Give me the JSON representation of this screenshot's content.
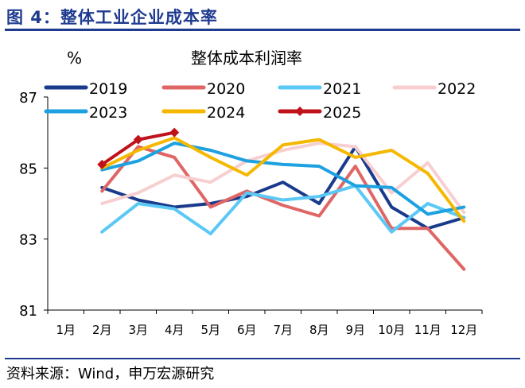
{
  "figure_title": "图 4：整体工业企业成本率",
  "source": "资料来源：Wind，申万宏源研究",
  "chart_data": {
    "type": "line",
    "title": "整体成本利润率",
    "unit_label": "%",
    "categories": [
      "1月",
      "2月",
      "3月",
      "4月",
      "5月",
      "6月",
      "7月",
      "8月",
      "9月",
      "10月",
      "11月",
      "12月"
    ],
    "ylim": [
      81,
      87
    ],
    "yticks": [
      81,
      83,
      85,
      87
    ],
    "grid": false,
    "legend_position": "top",
    "series": [
      {
        "name": "2019",
        "color": "#1a3a8c",
        "marker": false,
        "values": [
          null,
          84.45,
          84.1,
          83.9,
          84.0,
          84.2,
          84.6,
          84.0,
          85.6,
          83.9,
          83.3,
          83.6
        ]
      },
      {
        "name": "2020",
        "color": "#e06666",
        "marker": false,
        "values": [
          null,
          84.35,
          85.6,
          85.3,
          83.9,
          84.35,
          83.95,
          83.65,
          85.05,
          83.3,
          83.3,
          82.15
        ]
      },
      {
        "name": "2021",
        "color": "#5bc8f5",
        "marker": false,
        "values": [
          null,
          83.2,
          84.0,
          83.85,
          83.15,
          84.3,
          84.1,
          84.2,
          84.5,
          83.2,
          84.0,
          83.6
        ]
      },
      {
        "name": "2022",
        "color": "#f8cfd0",
        "marker": false,
        "values": [
          null,
          84.0,
          84.3,
          84.8,
          84.6,
          85.2,
          85.5,
          85.7,
          85.6,
          84.3,
          85.15,
          83.75
        ]
      },
      {
        "name": "2023",
        "color": "#1da1e0",
        "marker": false,
        "values": [
          null,
          84.95,
          85.2,
          85.7,
          85.5,
          85.2,
          85.1,
          85.05,
          84.5,
          84.45,
          83.7,
          83.9
        ]
      },
      {
        "name": "2024",
        "color": "#f5b800",
        "marker": false,
        "values": [
          null,
          85.0,
          85.5,
          85.85,
          85.3,
          84.8,
          85.65,
          85.8,
          85.3,
          85.5,
          84.85,
          83.5
        ]
      },
      {
        "name": "2025",
        "color": "#c0121a",
        "marker": true,
        "values": [
          null,
          85.1,
          85.8,
          86.0,
          null,
          null,
          null,
          null,
          null,
          null,
          null,
          null
        ]
      }
    ]
  }
}
